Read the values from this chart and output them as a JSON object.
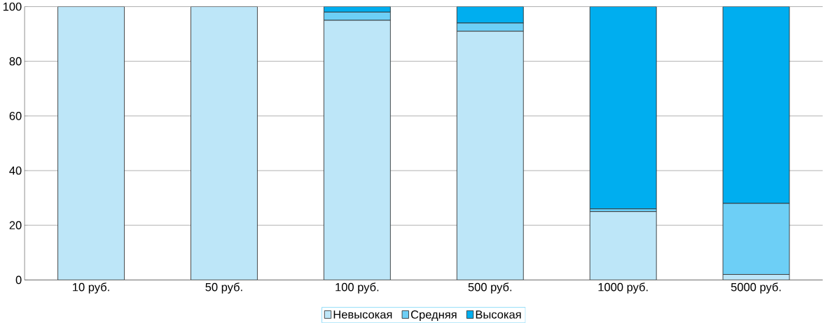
{
  "chart_data": {
    "type": "bar",
    "stacked": true,
    "categories": [
      "10 руб.",
      "50 руб.",
      "100 руб.",
      "500 руб.",
      "1000 руб.",
      "5000 руб."
    ],
    "series": [
      {
        "name": "Невысокая",
        "color": "#bde6f8",
        "values": [
          100,
          100,
          95,
          91,
          25,
          2
        ]
      },
      {
        "name": "Средняя",
        "color": "#6dcff6",
        "values": [
          0,
          0,
          3,
          3,
          1,
          26
        ]
      },
      {
        "name": "Высокая",
        "color": "#00aeef",
        "values": [
          0,
          0,
          2,
          6,
          74,
          72
        ]
      }
    ],
    "ylim": [
      0,
      100
    ],
    "yticks": [
      0,
      20,
      40,
      60,
      80,
      100
    ],
    "grid": "y",
    "legend": "bottom"
  }
}
